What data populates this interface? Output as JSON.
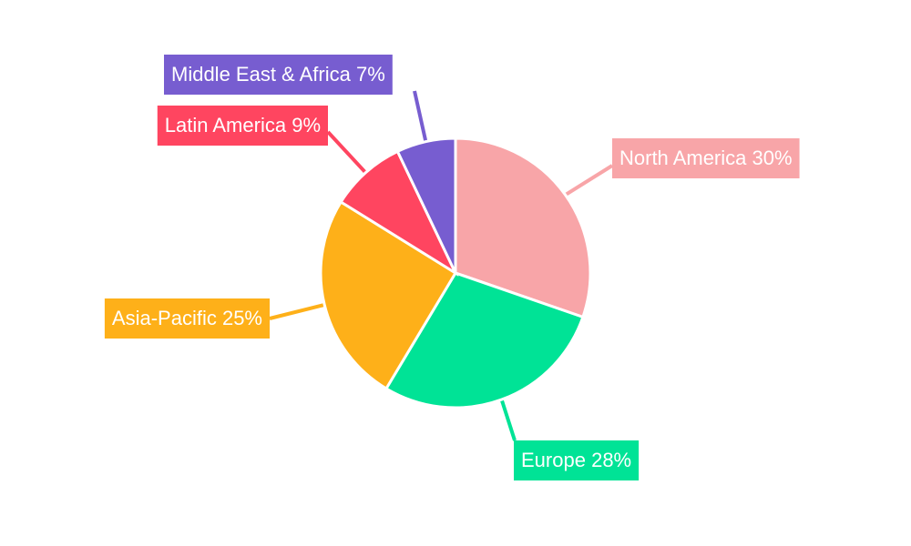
{
  "chart_data": {
    "type": "pie",
    "categories": [
      "North America",
      "Europe",
      "Asia-Pacific",
      "Latin America",
      "Middle East & Africa"
    ],
    "values": [
      30,
      28,
      25,
      9,
      7
    ],
    "value_labels": [
      "30%",
      "28%",
      "25%",
      "9%",
      "7%"
    ],
    "colors": [
      "#f8a5a8",
      "#00e396",
      "#feb019",
      "#ff4560",
      "#775dd0"
    ]
  }
}
